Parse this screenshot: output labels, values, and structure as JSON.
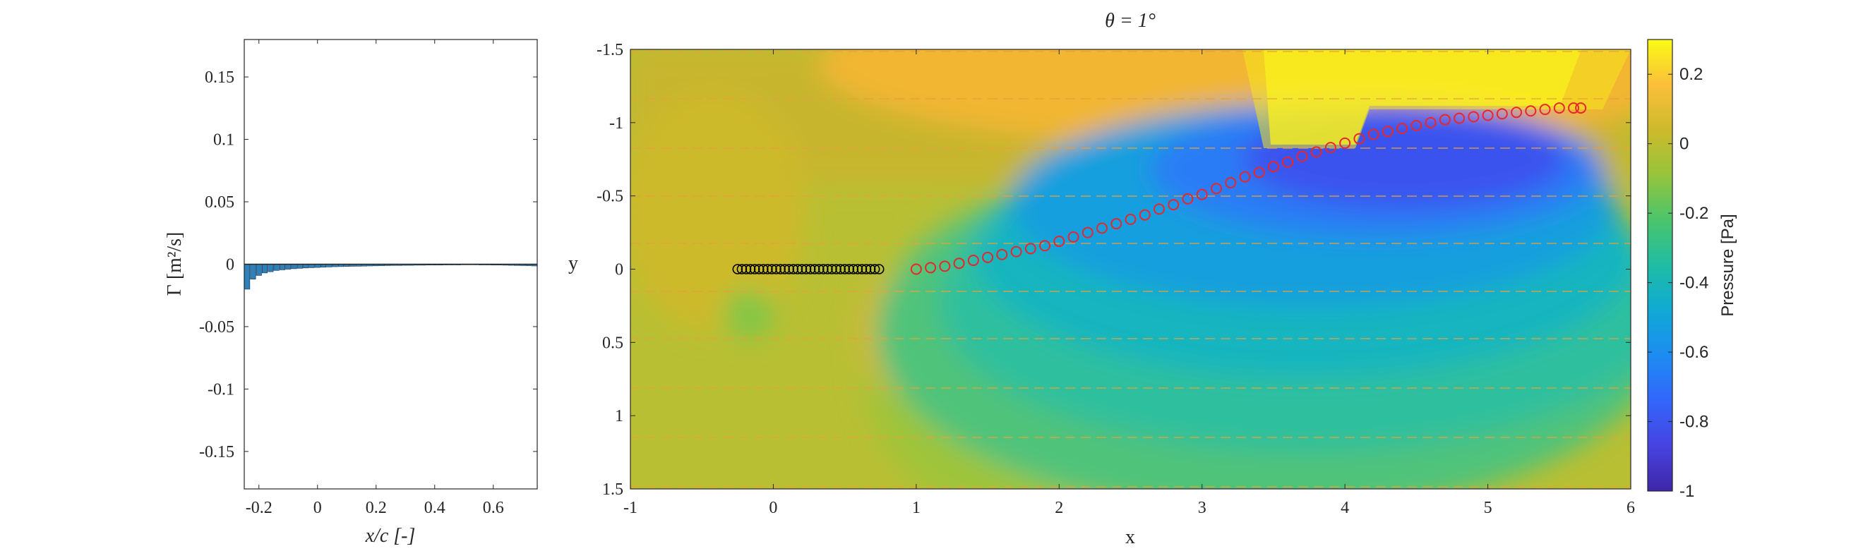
{
  "chart_data": [
    {
      "type": "bar",
      "xlabel": "x/c [-]",
      "ylabel": "Γ [m²/s]",
      "xlim": [
        -0.25,
        0.75
      ],
      "ylim": [
        -0.18,
        0.18
      ],
      "xticks": [
        "-0.2",
        "0",
        "0.2",
        "0.4",
        "0.6"
      ],
      "xtick_values": [
        -0.2,
        0,
        0.2,
        0.4,
        0.6
      ],
      "yticks": [
        "0.15",
        "0.1",
        "0.05",
        "0",
        "-0.05",
        "-0.1",
        "-0.15"
      ],
      "ytick_values": [
        0.15,
        0.1,
        0.05,
        0,
        -0.05,
        -0.1,
        -0.15
      ],
      "bar_color": "#2f7fb8",
      "x": [
        -0.24,
        -0.22,
        -0.2,
        -0.18,
        -0.16,
        -0.14,
        -0.12,
        -0.1,
        -0.08,
        -0.06,
        -0.04,
        -0.02,
        0.0,
        0.02,
        0.04,
        0.06,
        0.08,
        0.1,
        0.12,
        0.14,
        0.16,
        0.18,
        0.2,
        0.22,
        0.24,
        0.26,
        0.28,
        0.3,
        0.32,
        0.34,
        0.36,
        0.38,
        0.4,
        0.42,
        0.44,
        0.46,
        0.48,
        0.5,
        0.52,
        0.54,
        0.56,
        0.58,
        0.6,
        0.62,
        0.64,
        0.66,
        0.68,
        0.7,
        0.72,
        0.74
      ],
      "values": [
        -0.02,
        -0.012,
        -0.009,
        -0.007,
        -0.006,
        -0.005,
        -0.0045,
        -0.004,
        -0.0036,
        -0.0033,
        -0.003,
        -0.0028,
        -0.0026,
        -0.0024,
        -0.0022,
        -0.002,
        -0.0019,
        -0.0018,
        -0.0017,
        -0.0016,
        -0.0015,
        -0.0014,
        -0.0013,
        -0.0012,
        -0.0011,
        -0.001,
        -0.001,
        -0.0009,
        -0.0009,
        -0.0008,
        -0.0008,
        -0.0007,
        -0.0007,
        -0.0007,
        -0.0006,
        -0.0006,
        -0.0006,
        -0.0005,
        -0.0005,
        -0.0005,
        -0.0006,
        -0.0006,
        -0.0007,
        -0.0007,
        -0.0008,
        -0.0009,
        -0.001,
        -0.0011,
        -0.0012,
        -0.0014
      ]
    },
    {
      "type": "heatmap",
      "title": "θ = 1°",
      "xlabel": "x",
      "ylabel": "y",
      "xlim": [
        -1,
        6
      ],
      "ylim": [
        -1.5,
        1.5
      ],
      "y_reversed": true,
      "xticks": [
        "-1",
        "0",
        "1",
        "2",
        "3",
        "4",
        "5",
        "6"
      ],
      "xtick_values": [
        -1,
        0,
        1,
        2,
        3,
        4,
        5,
        6
      ],
      "yticks": [
        "-1.5",
        "-1",
        "-0.5",
        "0",
        "0.5",
        "1",
        "1.5"
      ],
      "ytick_values": [
        -1.5,
        -1,
        -0.5,
        0,
        0.5,
        1,
        1.5
      ],
      "colorbar": {
        "label": "Pressure [Pa]",
        "ticks": [
          "0.2",
          "0",
          "-0.2",
          "-0.4",
          "-0.6",
          "-0.8",
          "-1"
        ],
        "tick_values": [
          0.2,
          0,
          -0.2,
          -0.4,
          -0.6,
          -0.8,
          -1
        ],
        "range": [
          -1,
          0.3
        ],
        "colormap": "parula"
      },
      "plate_markers": {
        "x": [
          -0.25,
          -0.22,
          -0.19,
          -0.16,
          -0.13,
          -0.1,
          -0.07,
          -0.04,
          -0.01,
          0.02,
          0.05,
          0.08,
          0.11,
          0.14,
          0.17,
          0.2,
          0.23,
          0.26,
          0.29,
          0.32,
          0.35,
          0.38,
          0.41,
          0.44,
          0.47,
          0.5,
          0.53,
          0.56,
          0.59,
          0.62,
          0.65,
          0.68,
          0.71,
          0.74
        ],
        "y": 0,
        "color": "#000000"
      },
      "wake_markers": {
        "x": [
          1.0,
          1.1,
          1.2,
          1.3,
          1.4,
          1.5,
          1.6,
          1.7,
          1.8,
          1.9,
          2.0,
          2.1,
          2.2,
          2.3,
          2.4,
          2.5,
          2.6,
          2.7,
          2.8,
          2.9,
          3.0,
          3.1,
          3.2,
          3.3,
          3.4,
          3.5,
          3.6,
          3.7,
          3.8,
          3.9,
          4.0,
          4.1,
          4.2,
          4.3,
          4.4,
          4.5,
          4.6,
          4.7,
          4.8,
          4.9,
          5.0,
          5.1,
          5.2,
          5.3,
          5.4,
          5.5,
          5.6,
          5.65
        ],
        "y": [
          0,
          -0.01,
          -0.02,
          -0.04,
          -0.06,
          -0.08,
          -0.1,
          -0.12,
          -0.14,
          -0.16,
          -0.19,
          -0.22,
          -0.25,
          -0.28,
          -0.31,
          -0.34,
          -0.37,
          -0.41,
          -0.44,
          -0.48,
          -0.51,
          -0.55,
          -0.59,
          -0.63,
          -0.66,
          -0.7,
          -0.73,
          -0.77,
          -0.8,
          -0.83,
          -0.86,
          -0.89,
          -0.92,
          -0.94,
          -0.96,
          -0.98,
          -1.0,
          -1.02,
          -1.03,
          -1.04,
          -1.05,
          -1.06,
          -1.07,
          -1.08,
          -1.09,
          -1.1,
          -1.1,
          -1.1
        ],
        "color": "#e8262b"
      }
    }
  ]
}
